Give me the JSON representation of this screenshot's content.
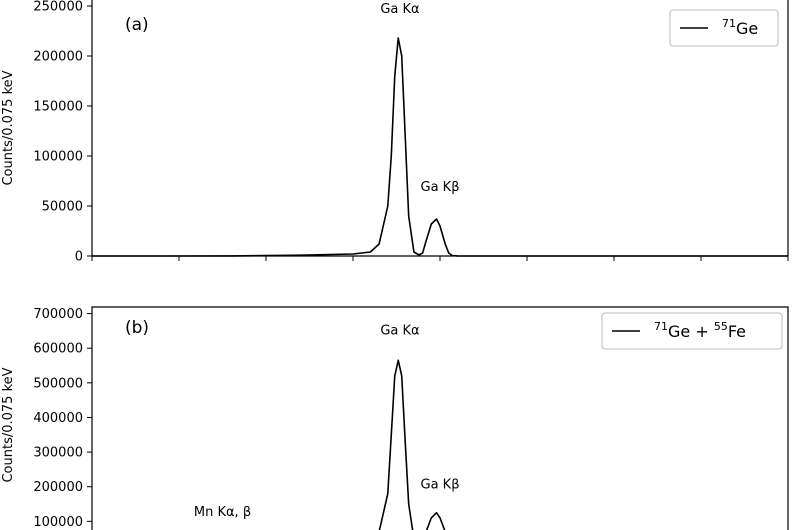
{
  "chart_data": [
    {
      "type": "line",
      "panel_label": "(a)",
      "ylabel": "Counts/0.075 keV",
      "ylim": [
        0,
        250000
      ],
      "yticks": [
        0,
        50000,
        100000,
        150000,
        200000,
        250000
      ],
      "xlim": [
        0,
        400
      ],
      "xticks": [
        0,
        50,
        100,
        150,
        200,
        250,
        300,
        350,
        400
      ],
      "legend": {
        "position": "top-right",
        "prefix": "",
        "sup1": "71",
        "t1": "Ge",
        "mid": "",
        "sup2": "",
        "t2": ""
      },
      "series": [
        {
          "name": "71Ge",
          "x": [
            0,
            40,
            80,
            120,
            150,
            160,
            165,
            170,
            172,
            174,
            176,
            178,
            180,
            182,
            185,
            188,
            190,
            192,
            195,
            198,
            200,
            203,
            205,
            207,
            210,
            215,
            225,
            260,
            300,
            350,
            400
          ],
          "y": [
            0,
            0,
            100,
            800,
            2000,
            4000,
            12000,
            50000,
            100000,
            180000,
            218000,
            200000,
            120000,
            40000,
            4000,
            1000,
            3000,
            15000,
            32000,
            37000,
            30000,
            12000,
            3000,
            500,
            100,
            0,
            0,
            0,
            0,
            0,
            0
          ]
        }
      ],
      "annotations": [
        {
          "text": "Ga Kα",
          "x": 177,
          "y": 243000
        },
        {
          "text": "Ga Kβ",
          "x": 200,
          "y": 65000
        }
      ]
    },
    {
      "type": "line",
      "panel_label": "(b)",
      "ylabel": "Counts/0.075 keV",
      "ylim": [
        0,
        700000
      ],
      "yticks": [
        100000,
        200000,
        300000,
        400000,
        500000,
        600000,
        700000
      ],
      "xlim": [
        0,
        400
      ],
      "legend": {
        "position": "top-right",
        "prefix": "",
        "sup1": "71",
        "t1": "Ge + ",
        "mid": "",
        "sup2": "55",
        "t2": "Fe"
      },
      "series": [
        {
          "name": "71Ge + 55Fe",
          "x": [
            160,
            165,
            170,
            172,
            174,
            176,
            178,
            180,
            182,
            185,
            188,
            190,
            192,
            195,
            198,
            200,
            203,
            205
          ],
          "y": [
            30000,
            70000,
            180000,
            350000,
            520000,
            565000,
            520000,
            330000,
            150000,
            50000,
            30000,
            40000,
            70000,
            110000,
            125000,
            110000,
            70000,
            40000
          ]
        }
      ],
      "annotations": [
        {
          "text": "Ga Kα",
          "x": 177,
          "y": 640000
        },
        {
          "text": "Ga Kβ",
          "x": 200,
          "y": 195000
        },
        {
          "text": "Mn Kα, β",
          "x": 75,
          "y": 115000
        }
      ]
    }
  ]
}
